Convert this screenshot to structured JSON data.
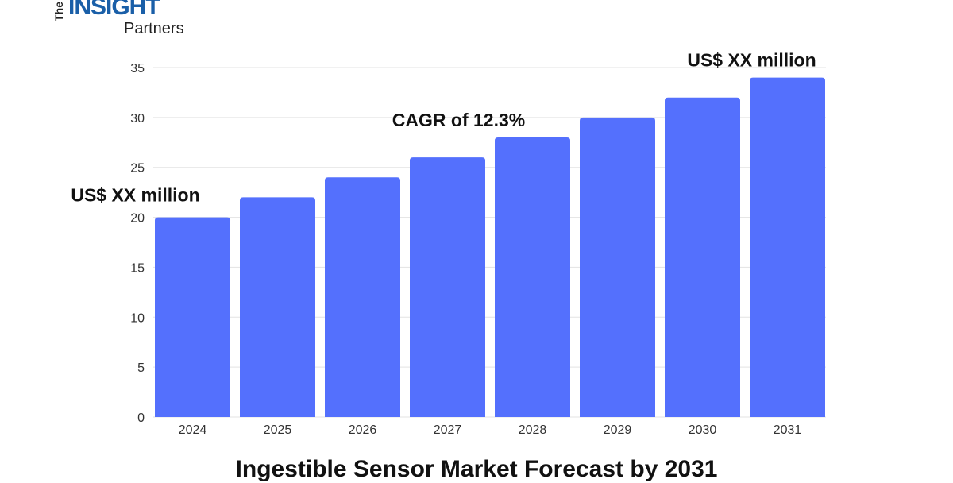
{
  "logo": {
    "the": "The",
    "insight": "INSIGHT",
    "partners": "Partners"
  },
  "chart_data": {
    "type": "bar",
    "title": "Ingestible Sensor Market Forecast by 2031",
    "categories": [
      "2024",
      "2025",
      "2026",
      "2027",
      "2028",
      "2029",
      "2030",
      "2031"
    ],
    "values": [
      20,
      22,
      24,
      26,
      28,
      30,
      32,
      34
    ],
    "ylim": [
      0,
      35
    ],
    "yticks": [
      0,
      5,
      10,
      15,
      20,
      25,
      30,
      35
    ],
    "grid": true,
    "bar_color": "#5470fd",
    "annotations": [
      {
        "text": "US$ XX million",
        "anchor": "2024"
      },
      {
        "text": "CAGR of 12.3%",
        "anchor": "2028"
      },
      {
        "text": "US$ XX million",
        "anchor": "2031"
      }
    ]
  }
}
